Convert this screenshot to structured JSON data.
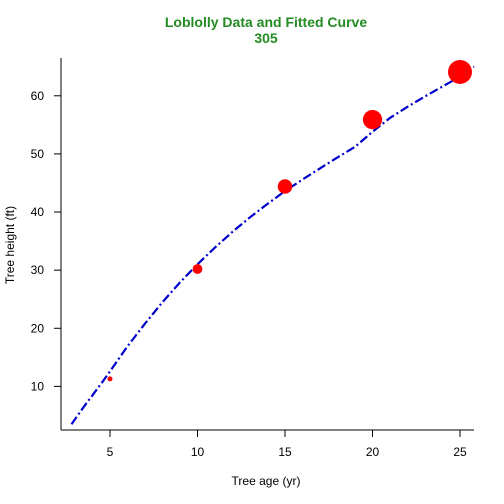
{
  "chart_data": {
    "type": "scatter",
    "title": "Loblolly Data and Fitted Curve",
    "subtitle": "305",
    "xlabel": "Tree age (yr)",
    "ylabel": "Tree height (ft)",
    "xlim": [
      2.2,
      25.8
    ],
    "ylim": [
      2.5,
      66.5
    ],
    "xticks": [
      5,
      10,
      15,
      20,
      25
    ],
    "yticks": [
      10,
      20,
      30,
      40,
      50,
      60
    ],
    "grid": false,
    "points": {
      "x": [
        5,
        10,
        15,
        20,
        25
      ],
      "y": [
        11.3,
        30.2,
        44.4,
        55.9,
        64.1
      ]
    },
    "fitted_curve": {
      "style": "dash-dot",
      "x": [
        2.8,
        3.5,
        4.5,
        5,
        6,
        7,
        8,
        9,
        10,
        11,
        12,
        13,
        14,
        15,
        16,
        17,
        18,
        19,
        20,
        21,
        22,
        23,
        24,
        25,
        25.8
      ],
      "y": [
        3.5,
        6.5,
        10.5,
        12.6,
        16.9,
        20.8,
        24.5,
        27.9,
        31.0,
        33.9,
        36.6,
        39.1,
        41.4,
        43.6,
        45.6,
        47.5,
        49.4,
        51.2,
        53.8,
        56.2,
        58.1,
        59.9,
        61.6,
        63.3,
        65.0
      ]
    },
    "colors": {
      "title": "#228b22",
      "points": "#ff0000",
      "curve": "#0000cd",
      "axes": "#000000"
    }
  }
}
